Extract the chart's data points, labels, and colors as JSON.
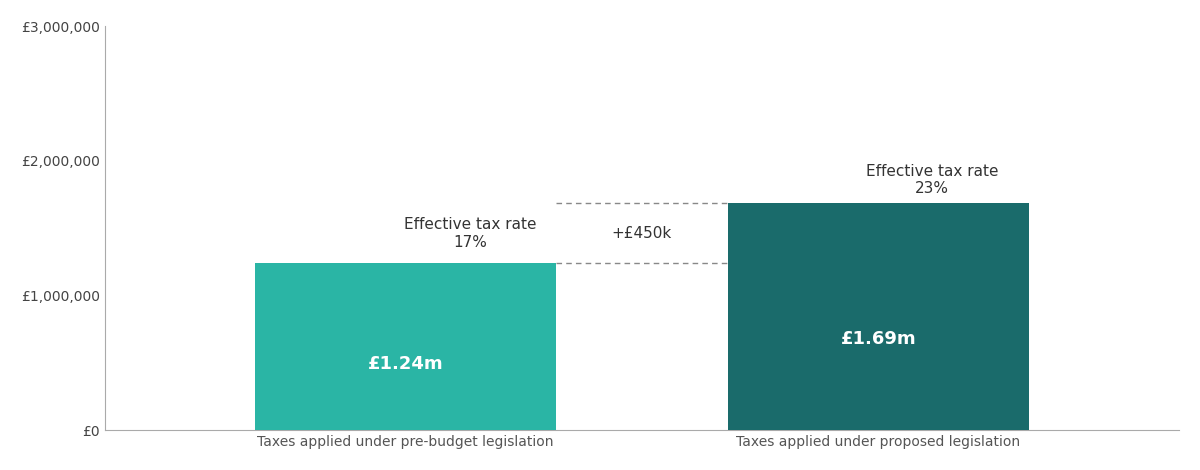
{
  "categories": [
    "Taxes applied under pre-budget legislation",
    "Taxes applied under proposed legislation"
  ],
  "values": [
    1240000,
    1690000
  ],
  "bar_colors": [
    "#2ab5a5",
    "#1a6b6b"
  ],
  "bar_labels": [
    "£1.24m",
    "£1.69m"
  ],
  "effective_tax_label_left": "Effective tax rate\n17%",
  "effective_tax_label_right": "Effective tax rate\n23%",
  "diff_label": "+£450k",
  "ylim": [
    0,
    3000000
  ],
  "yticks": [
    0,
    1000000,
    2000000,
    3000000
  ],
  "ytick_labels": [
    "£0",
    "£1,000,000",
    "£2,000,000",
    "£3,000,000"
  ],
  "background_color": "#ffffff",
  "bar_label_color": "#ffffff",
  "bar_label_fontsize": 13,
  "annotation_fontsize": 11,
  "diff_label_fontsize": 11,
  "axis_label_fontsize": 10,
  "bar_width": 0.28,
  "x_positions": [
    0.28,
    0.72
  ],
  "xlim": [
    0,
    1
  ]
}
